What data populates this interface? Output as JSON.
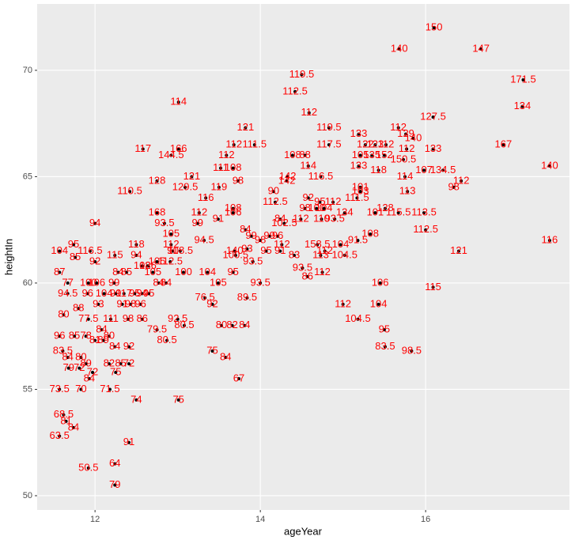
{
  "chart_data": {
    "type": "scatter",
    "x_label": "ageYear",
    "y_label": "heightIn",
    "xlim": [
      11.3,
      17.74
    ],
    "ylim": [
      49.33,
      73.12
    ],
    "xticks": [
      12,
      14,
      16
    ],
    "yticks": [
      50,
      55,
      60,
      65,
      70
    ],
    "grid": true,
    "point_color": "#000000",
    "label_color": "#ff0000",
    "x": [
      16.1,
      15.68,
      16.67,
      17.18,
      17.17,
      14.5,
      14.42,
      13.01,
      14.59,
      16.09,
      13.82,
      14.83,
      15.19,
      15.67,
      15.76,
      15.85,
      12.58,
      12.92,
      13.01,
      13.59,
      13.68,
      13.93,
      14.39,
      14.54,
      14.83,
      15.27,
      15.39,
      15.52,
      15.77,
      16.09,
      16.94,
      15.21,
      15.35,
      15.5,
      15.73,
      15.19,
      15.43,
      14.58,
      13.52,
      13.67,
      13.73,
      12.75,
      13.17,
      13.09,
      12.42,
      14.33,
      14.32,
      14.73,
      15.75,
      15.98,
      16.21,
      16.43,
      16.34,
      17.5,
      13.34,
      13.5,
      14.16,
      14.18,
      15.21,
      15.21,
      15.17,
      14.58,
      14.72,
      14.88,
      14.54,
      14.68,
      14.77,
      15.02,
      15.78,
      15.98,
      15.51,
      15.39,
      15.67,
      16.0,
      12.0,
      12.75,
      12.84,
      13.26,
      13.24,
      13.49,
      13.67,
      13.67,
      14.24,
      14.29,
      14.49,
      14.74,
      14.9,
      15.33,
      15.18,
      14.97,
      14.69,
      16.4,
      17.5,
      13.82,
      12.92,
      13.32,
      12.92,
      12.94,
      13.03,
      14.0,
      13.89,
      14.11,
      14.21,
      13.84,
      13.91,
      13.7,
      13.69,
      14.07,
      14.26,
      14.24,
      14.41,
      15.02,
      14.78,
      14.73,
      14.51,
      14.75,
      14.57,
      11.57,
      11.74,
      11.76,
      11.94,
      12.0,
      12.24,
      12.5,
      12.5,
      12.91,
      12.75,
      12.57,
      12.64,
      12.7,
      12.28,
      12.38,
      13.07,
      13.36,
      11.57,
      12.77,
      12.86,
      13.49,
      13.67,
      14.0,
      11.67,
      11.92,
      12.02,
      12.23,
      15.45,
      16.09,
      11.67,
      11.91,
      12.11,
      12.25,
      12.35,
      12.48,
      12.57,
      12.65,
      13.33,
      13.42,
      13.84,
      15.0,
      15.43,
      11.8,
      12.04,
      12.33,
      12.43,
      12.55,
      11.62,
      11.92,
      12.19,
      12.4,
      12.57,
      12.75,
      13.0,
      13.08,
      15.18,
      15.5,
      13.53,
      13.66,
      13.81,
      15.51,
      15.83,
      11.57,
      11.75,
      11.89,
      12.08,
      12.17,
      12.0,
      12.1,
      12.24,
      12.41,
      12.87,
      13.42,
      13.58,
      11.61,
      11.67,
      11.83,
      11.89,
      12.17,
      12.31,
      12.41,
      11.68,
      11.81,
      11.97,
      11.93,
      12.25,
      13.74,
      11.57,
      11.83,
      12.18,
      12.5,
      13.01,
      11.62,
      11.65,
      11.74,
      11.57,
      12.41,
      11.92,
      12.24,
      12.24
    ],
    "y": [
      72.0,
      71.0,
      71.0,
      69.55,
      68.3,
      69.8,
      69.0,
      68.5,
      68.0,
      67.8,
      67.3,
      67.3,
      67.0,
      67.3,
      67.0,
      66.8,
      66.3,
      66.0,
      66.3,
      66.0,
      66.5,
      66.5,
      66.0,
      66.0,
      66.5,
      66.5,
      66.5,
      66.5,
      66.3,
      66.3,
      66.5,
      66.0,
      66.0,
      66.0,
      65.8,
      65.5,
      65.3,
      65.5,
      65.4,
      65.4,
      64.8,
      64.8,
      65.0,
      64.5,
      64.3,
      65.0,
      64.8,
      65.0,
      65.0,
      65.3,
      65.3,
      64.8,
      64.5,
      65.5,
      64.0,
      64.5,
      64.3,
      63.8,
      64.5,
      64.3,
      64.0,
      64.0,
      63.8,
      63.8,
      63.5,
      63.5,
      63.5,
      63.3,
      64.3,
      63.3,
      63.5,
      63.3,
      63.3,
      62.5,
      62.8,
      63.3,
      62.8,
      63.3,
      62.8,
      63.0,
      63.5,
      63.3,
      63.0,
      62.8,
      63.0,
      63.0,
      63.0,
      62.3,
      62.0,
      61.8,
      61.8,
      61.5,
      62.0,
      62.5,
      62.3,
      62.0,
      61.8,
      61.5,
      61.5,
      62.0,
      62.2,
      62.2,
      62.2,
      61.6,
      61.0,
      61.3,
      61.5,
      61.5,
      61.8,
      61.5,
      61.3,
      61.3,
      61.5,
      61.3,
      60.7,
      60.5,
      60.3,
      61.5,
      61.8,
      61.2,
      61.5,
      61.0,
      61.3,
      61.8,
      61.3,
      61.0,
      61.0,
      60.8,
      60.8,
      60.5,
      60.5,
      60.5,
      60.5,
      60.5,
      60.5,
      60.0,
      60.0,
      60.0,
      60.5,
      60.0,
      60.0,
      60.0,
      60.0,
      60.0,
      60.0,
      59.8,
      59.5,
      59.5,
      59.5,
      59.5,
      59.5,
      59.5,
      59.5,
      59.5,
      59.3,
      59.0,
      59.3,
      59.0,
      59.0,
      58.8,
      59.0,
      59.0,
      59.0,
      59.0,
      58.5,
      58.3,
      58.3,
      58.3,
      58.3,
      57.8,
      58.3,
      58.0,
      58.3,
      57.8,
      58.0,
      58.0,
      58.0,
      57.0,
      56.8,
      57.5,
      57.5,
      57.5,
      57.8,
      57.5,
      57.3,
      57.3,
      57.0,
      57.0,
      57.3,
      56.8,
      56.5,
      56.8,
      56.5,
      56.5,
      56.2,
      56.2,
      56.2,
      56.2,
      56.0,
      56.0,
      55.8,
      55.5,
      55.8,
      55.5,
      55.0,
      55.0,
      55.0,
      54.5,
      54.5,
      53.8,
      53.5,
      53.2,
      52.8,
      52.5,
      51.3,
      51.5,
      50.5
    ],
    "labels": [
      150,
      140,
      147,
      171.5,
      134,
      119.5,
      112.5,
      114,
      112,
      127.5,
      121,
      119.5,
      133,
      112,
      129,
      140,
      117,
      144.5,
      166,
      112,
      112,
      111.5,
      108,
      88,
      117.5,
      122,
      123,
      112,
      112,
      133,
      167,
      105,
      135,
      152,
      150.5,
      133,
      118,
      114,
      111,
      108,
      98,
      128,
      121,
      129.5,
      110.5,
      142,
      142,
      116.5,
      114,
      107,
      134.5,
      112,
      98,
      140,
      116,
      119,
      90,
      112.5,
      101,
      103,
      111.5,
      92,
      95,
      112,
      98,
      100,
      104,
      134,
      113,
      113.5,
      128,
      101,
      115.5,
      112.5,
      94,
      168,
      93.5,
      112,
      99,
      91,
      108,
      106,
      84,
      102.5,
      112,
      110,
      93.5,
      108,
      91.5,
      104,
      158.5,
      121,
      116,
      84,
      105,
      94.5,
      112,
      91,
      108.5,
      98,
      99,
      99,
      96,
      93,
      93.5,
      100.5,
      140,
      95,
      112,
      91,
      83,
      104.5,
      112,
      113,
      93.5,
      112,
      86,
      104,
      95,
      85,
      116.5,
      92,
      115,
      118,
      94,
      112.5,
      105,
      108,
      126,
      105,
      84,
      85,
      100,
      104,
      87,
      84,
      84,
      105,
      95,
      93.5,
      77,
      100,
      106,
      99,
      106,
      115,
      94.5,
      96,
      104,
      99,
      117,
      95,
      94,
      95,
      76.5,
      92,
      89.5,
      112,
      104,
      88,
      93,
      91,
      98,
      96,
      80,
      77.5,
      111,
      98,
      86,
      79.5,
      92.5,
      80.5,
      104.5,
      95,
      80,
      82,
      84,
      83.5,
      98.5,
      96,
      85,
      78,
      84,
      80,
      81,
      89,
      84,
      92,
      80.5,
      75,
      84,
      83.5,
      84,
      80,
      89,
      82,
      85,
      72,
      79,
      72,
      72,
      84,
      75,
      67,
      73.5,
      70,
      71.5,
      74,
      75,
      68.5,
      81,
      84,
      63.5,
      91,
      50.5,
      64,
      79
    ]
  }
}
